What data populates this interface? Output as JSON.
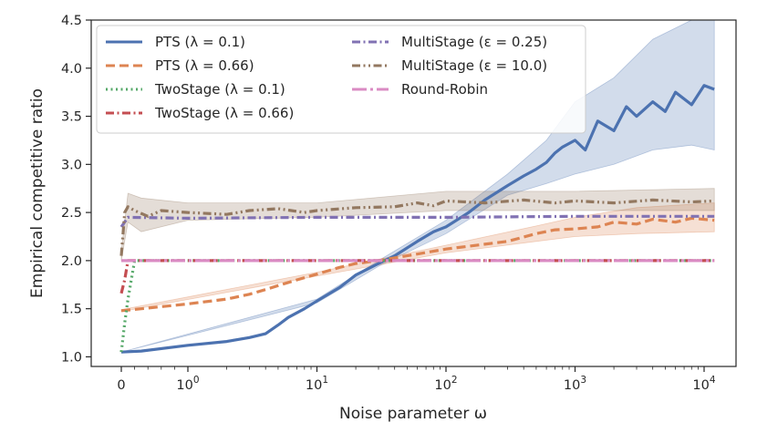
{
  "chart_data": {
    "type": "line",
    "title": "",
    "xlabel": "Noise parameter ω",
    "ylabel": "Empirical competitive ratio",
    "xscale": "symlog",
    "xlim": [
      -0.25,
      15000
    ],
    "ylim": [
      0.9,
      4.5
    ],
    "grid": false,
    "legend": {
      "position": "top-left",
      "columns": 2
    },
    "y_ticks": [
      1.0,
      1.5,
      2.0,
      2.5,
      3.0,
      3.5,
      4.0,
      4.5
    ],
    "y_tick_labels": [
      "1.0",
      "1.5",
      "2.0",
      "2.5",
      "3.0",
      "3.5",
      "4.0",
      "4.5"
    ],
    "x_ticks": [
      {
        "value": 0,
        "label": "0",
        "exp": ""
      },
      {
        "value": 1,
        "label": "10",
        "exp": "0"
      },
      {
        "value": 10,
        "label": "10",
        "exp": "1"
      },
      {
        "value": 100,
        "label": "10",
        "exp": "2"
      },
      {
        "value": 1000,
        "label": "10",
        "exp": "3"
      },
      {
        "value": 10000,
        "label": "10",
        "exp": "4"
      }
    ],
    "series": [
      {
        "name": "PTS (λ = 0.1)",
        "color": "#4c72b0",
        "dash": "solid",
        "points": [
          [
            0,
            1.05
          ],
          [
            0.3,
            1.06
          ],
          [
            1,
            1.12
          ],
          [
            2,
            1.16
          ],
          [
            3,
            1.2
          ],
          [
            4,
            1.24
          ],
          [
            5,
            1.33
          ],
          [
            6,
            1.41
          ],
          [
            8,
            1.5
          ],
          [
            10,
            1.58
          ],
          [
            15,
            1.72
          ],
          [
            20,
            1.85
          ],
          [
            30,
            1.97
          ],
          [
            40,
            2.05
          ],
          [
            60,
            2.2
          ],
          [
            80,
            2.3
          ],
          [
            100,
            2.35
          ],
          [
            150,
            2.5
          ],
          [
            200,
            2.63
          ],
          [
            300,
            2.78
          ],
          [
            400,
            2.88
          ],
          [
            500,
            2.95
          ],
          [
            600,
            3.02
          ],
          [
            700,
            3.12
          ],
          [
            800,
            3.18
          ],
          [
            1000,
            3.25
          ],
          [
            1200,
            3.15
          ],
          [
            1500,
            3.45
          ],
          [
            2000,
            3.35
          ],
          [
            2500,
            3.6
          ],
          [
            3000,
            3.5
          ],
          [
            4000,
            3.65
          ],
          [
            5000,
            3.55
          ],
          [
            6000,
            3.75
          ],
          [
            8000,
            3.62
          ],
          [
            10000,
            3.82
          ],
          [
            12000,
            3.78
          ]
        ],
        "band": [
          [
            0,
            1.05,
            1.05
          ],
          [
            10,
            1.56,
            1.6
          ],
          [
            30,
            1.94,
            2.0
          ],
          [
            100,
            2.28,
            2.42
          ],
          [
            300,
            2.68,
            2.9
          ],
          [
            600,
            2.8,
            3.25
          ],
          [
            1000,
            2.9,
            3.65
          ],
          [
            2000,
            3.0,
            3.9
          ],
          [
            4000,
            3.15,
            4.3
          ],
          [
            8000,
            3.2,
            4.5
          ],
          [
            12000,
            3.15,
            4.5
          ]
        ]
      },
      {
        "name": "PTS (λ = 0.66)",
        "color": "#dd8452",
        "dash": "dashed",
        "points": [
          [
            0,
            1.48
          ],
          [
            0.3,
            1.5
          ],
          [
            1,
            1.55
          ],
          [
            2,
            1.6
          ],
          [
            3,
            1.65
          ],
          [
            4,
            1.7
          ],
          [
            5,
            1.74
          ],
          [
            7,
            1.8
          ],
          [
            10,
            1.86
          ],
          [
            15,
            1.93
          ],
          [
            20,
            1.97
          ],
          [
            30,
            2.0
          ],
          [
            50,
            2.05
          ],
          [
            100,
            2.12
          ],
          [
            200,
            2.17
          ],
          [
            300,
            2.2
          ],
          [
            500,
            2.28
          ],
          [
            700,
            2.32
          ],
          [
            1000,
            2.33
          ],
          [
            1500,
            2.35
          ],
          [
            2000,
            2.4
          ],
          [
            3000,
            2.38
          ],
          [
            4000,
            2.43
          ],
          [
            6000,
            2.4
          ],
          [
            8000,
            2.44
          ],
          [
            12000,
            2.42
          ]
        ],
        "band": [
          [
            0,
            1.47,
            1.49
          ],
          [
            10,
            1.84,
            1.88
          ],
          [
            100,
            2.08,
            2.16
          ],
          [
            500,
            2.2,
            2.36
          ],
          [
            1000,
            2.25,
            2.45
          ],
          [
            3000,
            2.28,
            2.55
          ],
          [
            12000,
            2.3,
            2.6
          ]
        ]
      },
      {
        "name": "TwoStage (λ = 0.1)",
        "color": "#55a868",
        "dash": "dotted",
        "points": [
          [
            0,
            1.05
          ],
          [
            0.05,
            1.35
          ],
          [
            0.1,
            1.6
          ],
          [
            0.2,
            2.0
          ],
          [
            1,
            2.0
          ],
          [
            10,
            2.0
          ],
          [
            100,
            2.0
          ],
          [
            1000,
            2.0
          ],
          [
            12000,
            2.0
          ]
        ]
      },
      {
        "name": "TwoStage (λ = 0.66)",
        "color": "#c44e52",
        "dash": "dashdot",
        "points": [
          [
            0,
            1.66
          ],
          [
            0.05,
            1.8
          ],
          [
            0.1,
            2.0
          ],
          [
            1,
            2.0
          ],
          [
            10,
            2.0
          ],
          [
            100,
            2.0
          ],
          [
            1000,
            2.0
          ],
          [
            12000,
            2.0
          ]
        ]
      },
      {
        "name": "MultiStage (ε = 0.25)",
        "color": "#8172b3",
        "dash": "dashdot",
        "points": [
          [
            0,
            2.35
          ],
          [
            0.1,
            2.45
          ],
          [
            1,
            2.44
          ],
          [
            10,
            2.45
          ],
          [
            100,
            2.45
          ],
          [
            1000,
            2.46
          ],
          [
            12000,
            2.46
          ]
        ]
      },
      {
        "name": "MultiStage (ε = 10.0)",
        "color": "#937860",
        "dash": "dashdotdot",
        "points": [
          [
            0,
            2.05
          ],
          [
            0.05,
            2.5
          ],
          [
            0.1,
            2.56
          ],
          [
            0.2,
            2.52
          ],
          [
            0.4,
            2.46
          ],
          [
            0.6,
            2.52
          ],
          [
            1,
            2.5
          ],
          [
            2,
            2.48
          ],
          [
            3,
            2.52
          ],
          [
            5,
            2.54
          ],
          [
            8,
            2.5
          ],
          [
            10,
            2.52
          ],
          [
            20,
            2.55
          ],
          [
            40,
            2.56
          ],
          [
            60,
            2.6
          ],
          [
            80,
            2.57
          ],
          [
            100,
            2.62
          ],
          [
            200,
            2.6
          ],
          [
            400,
            2.63
          ],
          [
            700,
            2.6
          ],
          [
            1000,
            2.62
          ],
          [
            2000,
            2.6
          ],
          [
            4000,
            2.63
          ],
          [
            8000,
            2.61
          ],
          [
            12000,
            2.62
          ]
        ],
        "band": [
          [
            0,
            2.0,
            2.1
          ],
          [
            0.1,
            2.4,
            2.7
          ],
          [
            0.3,
            2.3,
            2.65
          ],
          [
            1,
            2.42,
            2.6
          ],
          [
            10,
            2.45,
            2.6
          ],
          [
            100,
            2.52,
            2.72
          ],
          [
            1000,
            2.52,
            2.72
          ],
          [
            12000,
            2.52,
            2.75
          ]
        ]
      },
      {
        "name": "Round-Robin",
        "color": "#da8bc3",
        "dash": "longdash",
        "points": [
          [
            0,
            2.0
          ],
          [
            12000,
            2.0
          ]
        ]
      }
    ]
  }
}
